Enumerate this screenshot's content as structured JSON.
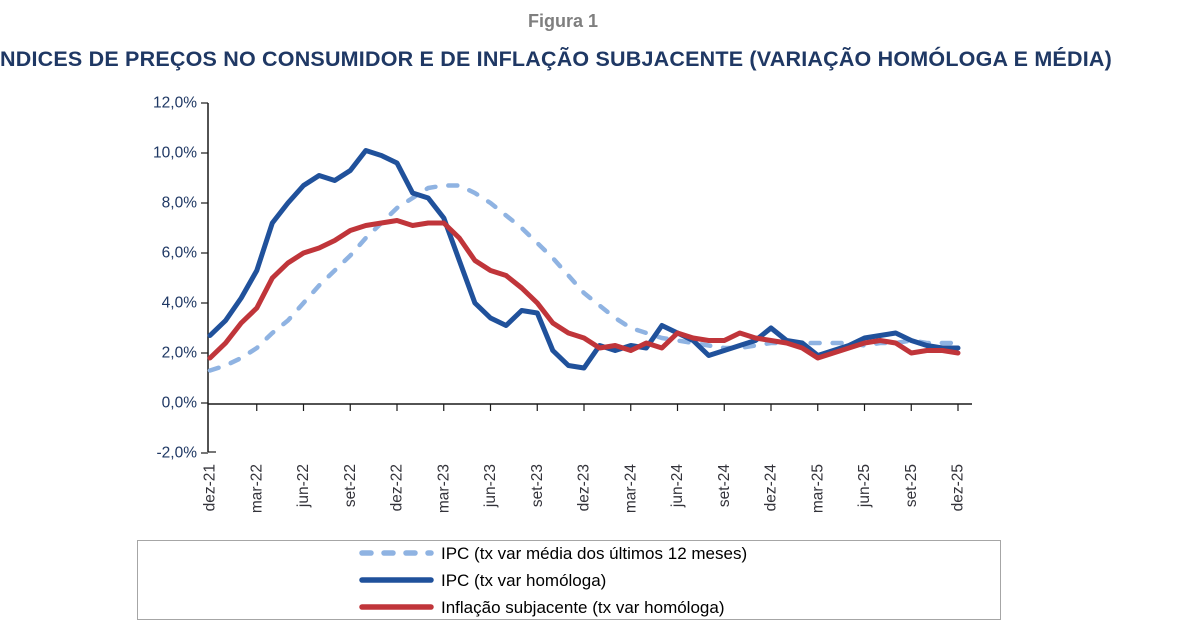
{
  "chart_data": {
    "type": "line",
    "title": "Figura 1",
    "subtitle": "NDICES DE PREÇOS NO CONSUMIDOR E DE INFLAÇÃO SUBJACENTE (VARIAÇÃO HOMÓLOGA E MÉDIA)",
    "x_frequency": "monthly",
    "x_range": [
      "dez-21",
      "dez-25"
    ],
    "x_tick_labels": [
      "dez-21",
      "mar-22",
      "jun-22",
      "set-22",
      "dez-22",
      "mar-23",
      "jun-23",
      "set-23",
      "dez-23",
      "mar-24",
      "jun-24",
      "set-24",
      "dez-24",
      "mar-25",
      "jun-25",
      "set-25",
      "dez-25"
    ],
    "y_ticks": [
      {
        "label": "12,0%",
        "value": 12
      },
      {
        "label": "10,0%",
        "value": 10
      },
      {
        "label": "8,0%",
        "value": 8
      },
      {
        "label": "6,0%",
        "value": 6
      },
      {
        "label": "4,0%",
        "value": 4
      },
      {
        "label": "2,0%",
        "value": 2
      },
      {
        "label": "0,0%",
        "value": 0
      },
      {
        "label": "-2,0%",
        "value": -2
      }
    ],
    "ylim": [
      -2,
      12
    ],
    "grid": false,
    "legend_position": "bottom",
    "series": [
      {
        "name": "IPC (tx var média dos últimos 12 meses)",
        "color": "#8FB3E2",
        "style": "dashed",
        "values": [
          1.3,
          1.5,
          1.8,
          2.2,
          2.8,
          3.3,
          4.0,
          4.7,
          5.3,
          5.9,
          6.6,
          7.2,
          7.8,
          8.2,
          8.6,
          8.7,
          8.7,
          8.4,
          8.0,
          7.5,
          7.0,
          6.4,
          5.8,
          5.1,
          4.4,
          3.9,
          3.4,
          3.0,
          2.8,
          2.6,
          2.5,
          2.4,
          2.3,
          2.2,
          2.2,
          2.3,
          2.4,
          2.4,
          2.4,
          2.4,
          2.4,
          2.4,
          2.3,
          2.4,
          2.4,
          2.5,
          2.4,
          2.4,
          2.4
        ]
      },
      {
        "name": "IPC (tx var homóloga)",
        "color": "#20519B",
        "style": "solid",
        "values": [
          2.7,
          3.3,
          4.2,
          5.3,
          7.2,
          8.0,
          8.7,
          9.1,
          8.9,
          9.3,
          10.1,
          9.9,
          9.6,
          8.4,
          8.2,
          7.4,
          5.7,
          4.0,
          3.4,
          3.1,
          3.7,
          3.6,
          2.1,
          1.5,
          1.4,
          2.3,
          2.1,
          2.3,
          2.2,
          3.1,
          2.8,
          2.5,
          1.9,
          2.1,
          2.3,
          2.5,
          3.0,
          2.5,
          2.4,
          1.9,
          2.1,
          2.3,
          2.6,
          2.7,
          2.8,
          2.5,
          2.3,
          2.2,
          2.2
        ]
      },
      {
        "name": "Inflação subjacente (tx var homóloga)",
        "color": "#C0353A",
        "style": "solid",
        "values": [
          1.8,
          2.4,
          3.2,
          3.8,
          5.0,
          5.6,
          6.0,
          6.2,
          6.5,
          6.9,
          7.1,
          7.2,
          7.3,
          7.1,
          7.2,
          7.2,
          6.6,
          5.7,
          5.3,
          5.1,
          4.6,
          4.0,
          3.2,
          2.8,
          2.6,
          2.2,
          2.3,
          2.1,
          2.4,
          2.2,
          2.8,
          2.6,
          2.5,
          2.5,
          2.8,
          2.6,
          2.5,
          2.4,
          2.2,
          1.8,
          2.0,
          2.2,
          2.4,
          2.5,
          2.4,
          2.0,
          2.1,
          2.1,
          2.0
        ]
      }
    ]
  }
}
